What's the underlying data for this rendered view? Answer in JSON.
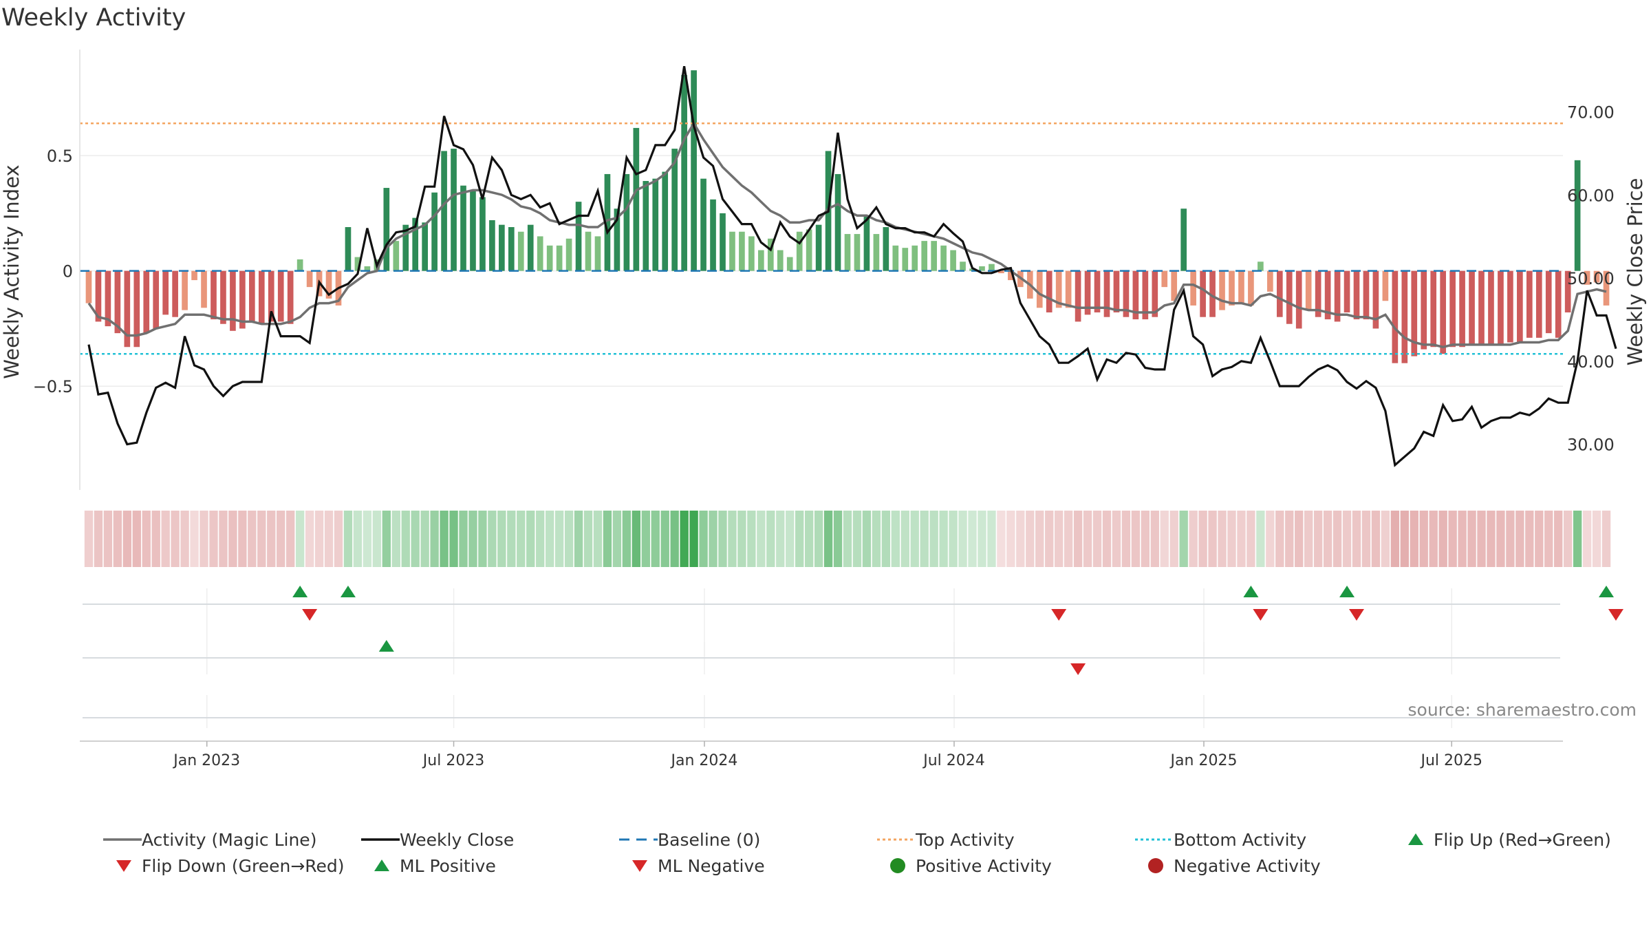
{
  "title": "Weekly Activity",
  "source_text": "source: sharemaestro.com",
  "colors": {
    "up": "#2e8b57",
    "up_light": "#7fbf7f",
    "down": "#cd5c5c",
    "down_light": "#e9967a",
    "magic": "#707070",
    "close": "#111111",
    "baseline": "#1f77b4",
    "top": "#f4a460",
    "bottom": "#22c1d6",
    "flip_up": "#1a9641",
    "flip_down": "#d62728",
    "pos_dot": "#228b22",
    "neg_dot": "#b22222"
  },
  "chart_data": {
    "type": "bar",
    "title": "Weekly Activity",
    "ylabel": "Weekly Activity Index",
    "y2label": "Weekly Close Price",
    "ylim": [
      -0.95,
      0.96
    ],
    "y2lim": [
      24.5,
      77.5
    ],
    "yticks": [
      0.5,
      0,
      -0.5
    ],
    "ytick_labels": [
      "0.5",
      "0",
      "−0.5"
    ],
    "y2ticks": [
      70,
      60,
      50,
      40,
      30
    ],
    "y2tick_labels": [
      "70.00",
      "60.00",
      "50.00",
      "40.00",
      "30.00"
    ],
    "x_start": "2022-10-07",
    "x_end": "2025-09-12",
    "xticks": [
      "Jan 2023",
      "Jul 2023",
      "Jan 2024",
      "Jul 2024",
      "Jan 2025",
      "Jul 2025"
    ],
    "xtick_week_index": [
      12.3,
      38.0,
      64.1,
      90.1,
      116.1,
      141.9
    ],
    "top_activity": 0.64,
    "bottom_activity": -0.36,
    "baseline": 0,
    "activity": [
      -0.14,
      -0.22,
      -0.24,
      -0.27,
      -0.33,
      -0.33,
      -0.27,
      -0.25,
      -0.19,
      -0.2,
      -0.17,
      -0.04,
      -0.16,
      -0.21,
      -0.23,
      -0.26,
      -0.25,
      -0.22,
      -0.23,
      -0.22,
      -0.22,
      -0.23,
      0.05,
      -0.07,
      -0.11,
      -0.12,
      -0.15,
      0.19,
      0.06,
      0.02,
      0.05,
      0.36,
      0.13,
      0.2,
      0.23,
      0.21,
      0.34,
      0.52,
      0.53,
      0.37,
      0.35,
      0.32,
      0.22,
      0.2,
      0.19,
      0.17,
      0.2,
      0.15,
      0.11,
      0.11,
      0.14,
      0.3,
      0.17,
      0.15,
      0.42,
      0.27,
      0.42,
      0.62,
      0.39,
      0.4,
      0.43,
      0.53,
      0.85,
      0.87,
      0.4,
      0.31,
      0.25,
      0.17,
      0.17,
      0.15,
      0.09,
      0.14,
      0.09,
      0.06,
      0.17,
      0.18,
      0.2,
      0.52,
      0.42,
      0.16,
      0.16,
      0.24,
      0.16,
      0.19,
      0.11,
      0.1,
      0.11,
      0.13,
      0.13,
      0.11,
      0.09,
      0.04,
      0.01,
      0.02,
      0.03,
      -0.01,
      -0.04,
      -0.07,
      -0.12,
      -0.16,
      -0.18,
      -0.16,
      -0.16,
      -0.22,
      -0.19,
      -0.18,
      -0.2,
      -0.18,
      -0.2,
      -0.21,
      -0.21,
      -0.2,
      -0.07,
      -0.13,
      0.27,
      -0.15,
      -0.2,
      -0.2,
      -0.17,
      -0.15,
      -0.14,
      -0.15,
      0.04,
      -0.09,
      -0.2,
      -0.23,
      -0.25,
      -0.17,
      -0.2,
      -0.21,
      -0.22,
      -0.18,
      -0.21,
      -0.21,
      -0.25,
      -0.13,
      -0.4,
      -0.4,
      -0.37,
      -0.34,
      -0.33,
      -0.36,
      -0.33,
      -0.33,
      -0.32,
      -0.32,
      -0.32,
      -0.32,
      -0.31,
      -0.31,
      -0.29,
      -0.29,
      -0.27,
      -0.29,
      -0.18,
      0.48,
      -0.06,
      -0.05,
      -0.15
    ],
    "magic_line": [
      -0.14,
      -0.2,
      -0.21,
      -0.24,
      -0.28,
      -0.28,
      -0.27,
      -0.25,
      -0.24,
      -0.23,
      -0.19,
      -0.19,
      -0.19,
      -0.2,
      -0.21,
      -0.21,
      -0.22,
      -0.22,
      -0.23,
      -0.23,
      -0.23,
      -0.22,
      -0.2,
      -0.16,
      -0.14,
      -0.14,
      -0.13,
      -0.07,
      -0.04,
      -0.01,
      0.0,
      0.1,
      0.14,
      0.16,
      0.18,
      0.2,
      0.24,
      0.29,
      0.33,
      0.34,
      0.35,
      0.35,
      0.34,
      0.33,
      0.31,
      0.28,
      0.27,
      0.25,
      0.22,
      0.21,
      0.2,
      0.2,
      0.19,
      0.19,
      0.22,
      0.23,
      0.27,
      0.35,
      0.37,
      0.39,
      0.42,
      0.47,
      0.57,
      0.64,
      0.57,
      0.51,
      0.45,
      0.41,
      0.37,
      0.34,
      0.3,
      0.26,
      0.24,
      0.21,
      0.21,
      0.22,
      0.22,
      0.27,
      0.29,
      0.26,
      0.24,
      0.24,
      0.22,
      0.21,
      0.19,
      0.18,
      0.17,
      0.16,
      0.15,
      0.14,
      0.12,
      0.1,
      0.08,
      0.07,
      0.05,
      0.03,
      0.0,
      -0.03,
      -0.06,
      -0.1,
      -0.12,
      -0.14,
      -0.15,
      -0.16,
      -0.16,
      -0.16,
      -0.16,
      -0.17,
      -0.17,
      -0.18,
      -0.18,
      -0.18,
      -0.15,
      -0.14,
      -0.06,
      -0.06,
      -0.08,
      -0.11,
      -0.13,
      -0.14,
      -0.14,
      -0.15,
      -0.11,
      -0.1,
      -0.12,
      -0.14,
      -0.16,
      -0.17,
      -0.17,
      -0.18,
      -0.19,
      -0.19,
      -0.2,
      -0.2,
      -0.21,
      -0.19,
      -0.25,
      -0.29,
      -0.31,
      -0.32,
      -0.32,
      -0.33,
      -0.32,
      -0.32,
      -0.32,
      -0.32,
      -0.32,
      -0.32,
      -0.32,
      -0.31,
      -0.31,
      -0.31,
      -0.3,
      -0.3,
      -0.26,
      -0.1,
      -0.09,
      -0.08,
      -0.09
    ],
    "weekly_close": [
      42.0,
      36.0,
      36.2,
      32.5,
      30.0,
      30.2,
      33.8,
      36.8,
      37.4,
      36.8,
      43.0,
      39.5,
      39.0,
      37.0,
      35.8,
      37.0,
      37.5,
      37.5,
      37.5,
      46.0,
      43.0,
      43.0,
      43.0,
      42.2,
      49.5,
      48.0,
      48.8,
      49.3,
      50.5,
      56.0,
      51.5,
      54.0,
      55.5,
      55.7,
      56.2,
      61.0,
      61.0,
      69.5,
      66.0,
      65.5,
      63.6,
      59.5,
      64.5,
      63.0,
      60.0,
      59.5,
      60.0,
      58.5,
      59.0,
      56.5,
      57.0,
      57.5,
      57.5,
      60.5,
      55.5,
      57.0,
      64.5,
      62.5,
      63.0,
      66.0,
      66.0,
      67.8,
      75.5,
      68.3,
      64.5,
      63.5,
      59.5,
      58.0,
      56.5,
      56.5,
      54.3,
      53.4,
      56.7,
      55.0,
      54.2,
      55.8,
      57.5,
      58.0,
      67.5,
      59.5,
      56.0,
      57.0,
      58.5,
      56.5,
      56.0,
      56.0,
      55.5,
      55.5,
      55.0,
      56.5,
      55.4,
      54.4,
      51.2,
      50.6,
      50.6,
      51.0,
      51.2,
      47.0,
      45.0,
      43.0,
      42.0,
      39.8,
      39.8,
      40.6,
      41.5,
      37.8,
      40.2,
      39.8,
      41.0,
      40.8,
      39.2,
      39.0,
      39.0,
      46.2,
      48.5,
      43.0,
      42.0,
      38.2,
      39.0,
      39.3,
      40.0,
      39.8,
      42.8,
      40.0,
      37.0,
      37.0,
      37.0,
      38.1,
      39.0,
      39.5,
      38.9,
      37.5,
      36.7,
      37.6,
      36.8,
      34.0,
      27.5,
      28.5,
      29.5,
      31.5,
      31.0,
      34.7,
      32.8,
      33.0,
      34.5,
      32.0,
      32.8,
      33.2,
      33.2,
      33.8,
      33.5,
      34.3,
      35.5,
      35.0,
      35.0,
      40.0,
      48.5,
      45.5,
      45.5,
      41.5
    ],
    "flip_up": [
      22,
      27,
      121,
      131,
      158
    ],
    "flip_down": [
      23,
      101,
      122,
      132,
      159
    ],
    "ml_positive": [
      31
    ],
    "ml_negative": [
      103
    ],
    "positive_activity": [],
    "negative_activity": []
  },
  "legend": {
    "items": [
      {
        "label": "Activity (Magic Line)",
        "symbol": "line-solid-gray"
      },
      {
        "label": "Weekly Close",
        "symbol": "line-solid-black"
      },
      {
        "label": "Baseline (0)",
        "symbol": "line-dashed-blue"
      },
      {
        "label": "Top Activity",
        "symbol": "line-dotted-orange"
      },
      {
        "label": "Bottom Activity",
        "symbol": "line-dotted-cyan"
      },
      {
        "label": "Flip Up (Red→Green)",
        "symbol": "triangle-up-green"
      },
      {
        "label": "Flip Down (Green→Red)",
        "symbol": "triangle-down-red"
      },
      {
        "label": "ML Positive",
        "symbol": "triangle-up-green"
      },
      {
        "label": "ML Negative",
        "symbol": "triangle-down-red"
      },
      {
        "label": "Positive Activity",
        "symbol": "dot-green"
      },
      {
        "label": "Negative Activity",
        "symbol": "dot-red"
      }
    ]
  }
}
